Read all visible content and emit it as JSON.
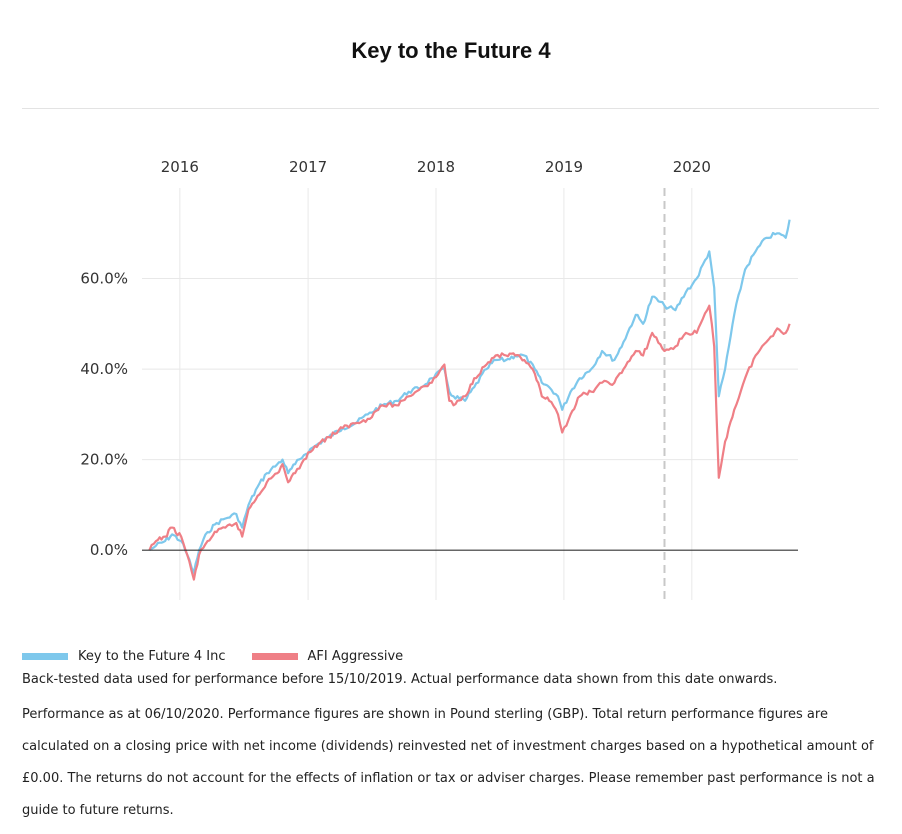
{
  "title": "Key to the Future 4",
  "legend": {
    "series1": "Key to the Future 4 Inc",
    "series2": "AFI Aggressive"
  },
  "notes": {
    "backtest": "Back-tested data used for performance before 15/10/2019. Actual performance data shown from this date onwards.",
    "disclaimer": "Performance as at 06/10/2020. Performance figures are shown in Pound sterling (GBP). Total return performance figures are calculated on a closing price with net income (dividends) reinvested net of investment charges based on a hypothetical amount of £0.00. The returns do not account for the effects of inflation or tax or adviser charges. Please remember past performance is not a guide to future returns."
  },
  "colors": {
    "series1": "#7ec8ec",
    "series2": "#ef7f86",
    "grid": "#e8e8e8",
    "zero_line": "#333333",
    "marker_line": "#c8c8c8"
  },
  "chart_data": {
    "type": "line",
    "x_axis": {
      "ticks": [
        {
          "date": "2016-01-01",
          "label": "2016"
        },
        {
          "date": "2017-01-01",
          "label": "2017"
        },
        {
          "date": "2018-01-01",
          "label": "2018"
        },
        {
          "date": "2019-01-01",
          "label": "2019"
        },
        {
          "date": "2020-01-01",
          "label": "2020"
        }
      ],
      "range": [
        "2015-09-15",
        "2020-10-30"
      ],
      "position": "top"
    },
    "y_axis": {
      "ticks": [
        {
          "value": 0,
          "label": "0.0%"
        },
        {
          "value": 20,
          "label": "20.0%"
        },
        {
          "value": 40,
          "label": "40.0%"
        },
        {
          "value": 60,
          "label": "60.0%"
        }
      ],
      "range": [
        -11,
        80
      ],
      "unit": "%"
    },
    "marker_date": "2019-10-15",
    "grid": true,
    "legend_position": "bottom-left",
    "series": [
      {
        "name": "Key to the Future 4 Inc",
        "points": [
          [
            "2015-10-06",
            0
          ],
          [
            "2015-10-25",
            1
          ],
          [
            "2015-11-20",
            2
          ],
          [
            "2015-12-10",
            3.5
          ],
          [
            "2016-01-05",
            2
          ],
          [
            "2016-01-22",
            -1
          ],
          [
            "2016-02-10",
            -5
          ],
          [
            "2016-02-25",
            0
          ],
          [
            "2016-03-20",
            4
          ],
          [
            "2016-04-15",
            6
          ],
          [
            "2016-05-10",
            7
          ],
          [
            "2016-06-10",
            8
          ],
          [
            "2016-06-27",
            5
          ],
          [
            "2016-07-15",
            10
          ],
          [
            "2016-08-10",
            14
          ],
          [
            "2016-09-05",
            17
          ],
          [
            "2016-10-05",
            19
          ],
          [
            "2016-10-20",
            20
          ],
          [
            "2016-11-05",
            17
          ],
          [
            "2016-11-25",
            19
          ],
          [
            "2016-12-20",
            21
          ],
          [
            "2017-01-20",
            23
          ],
          [
            "2017-03-01",
            25
          ],
          [
            "2017-04-10",
            27
          ],
          [
            "2017-05-15",
            28
          ],
          [
            "2017-06-20",
            30
          ],
          [
            "2017-08-01",
            32
          ],
          [
            "2017-09-10",
            33
          ],
          [
            "2017-10-15",
            35
          ],
          [
            "2017-11-20",
            36
          ],
          [
            "2017-12-20",
            38
          ],
          [
            "2018-01-25",
            40
          ],
          [
            "2018-02-08",
            35
          ],
          [
            "2018-02-20",
            34
          ],
          [
            "2018-03-25",
            33
          ],
          [
            "2018-04-20",
            36
          ],
          [
            "2018-05-25",
            40
          ],
          [
            "2018-06-20",
            42
          ],
          [
            "2018-07-20",
            42
          ],
          [
            "2018-08-15",
            43
          ],
          [
            "2018-09-10",
            43
          ],
          [
            "2018-10-10",
            40
          ],
          [
            "2018-10-30",
            37
          ],
          [
            "2018-11-20",
            36
          ],
          [
            "2018-12-15",
            34
          ],
          [
            "2018-12-27",
            31
          ],
          [
            "2019-01-20",
            35
          ],
          [
            "2019-02-15",
            38
          ],
          [
            "2019-03-20",
            40
          ],
          [
            "2019-04-20",
            44
          ],
          [
            "2019-05-25",
            42
          ],
          [
            "2019-06-20",
            46
          ],
          [
            "2019-07-25",
            52
          ],
          [
            "2019-08-15",
            50
          ],
          [
            "2019-09-10",
            56
          ],
          [
            "2019-10-15",
            54
          ],
          [
            "2019-11-15",
            53
          ],
          [
            "2019-12-15",
            57
          ],
          [
            "2020-01-15",
            60
          ],
          [
            "2020-02-20",
            66
          ],
          [
            "2020-03-05",
            58
          ],
          [
            "2020-03-18",
            34
          ],
          [
            "2020-04-05",
            40
          ],
          [
            "2020-05-01",
            52
          ],
          [
            "2020-06-01",
            62
          ],
          [
            "2020-07-01",
            66
          ],
          [
            "2020-08-01",
            69
          ],
          [
            "2020-09-01",
            70
          ],
          [
            "2020-09-25",
            69
          ],
          [
            "2020-10-06",
            73
          ]
        ]
      },
      {
        "name": "AFI Aggressive",
        "points": [
          [
            "2015-10-06",
            0
          ],
          [
            "2015-10-25",
            2
          ],
          [
            "2015-11-20",
            3
          ],
          [
            "2015-12-10",
            5
          ],
          [
            "2016-01-05",
            3
          ],
          [
            "2016-01-22",
            -1
          ],
          [
            "2016-02-10",
            -6.5
          ],
          [
            "2016-02-25",
            -1
          ],
          [
            "2016-03-20",
            2
          ],
          [
            "2016-04-15",
            4
          ],
          [
            "2016-05-10",
            5
          ],
          [
            "2016-06-10",
            6
          ],
          [
            "2016-06-27",
            3
          ],
          [
            "2016-07-15",
            9
          ],
          [
            "2016-08-10",
            12
          ],
          [
            "2016-09-05",
            15
          ],
          [
            "2016-10-05",
            17
          ],
          [
            "2016-10-20",
            19
          ],
          [
            "2016-11-05",
            15
          ],
          [
            "2016-11-25",
            17
          ],
          [
            "2016-12-20",
            20
          ],
          [
            "2017-01-20",
            23
          ],
          [
            "2017-03-01",
            25
          ],
          [
            "2017-04-10",
            27
          ],
          [
            "2017-05-15",
            28
          ],
          [
            "2017-06-20",
            29
          ],
          [
            "2017-08-01",
            32
          ],
          [
            "2017-09-10",
            32
          ],
          [
            "2017-10-15",
            34
          ],
          [
            "2017-11-20",
            36
          ],
          [
            "2017-12-20",
            37
          ],
          [
            "2018-01-25",
            41
          ],
          [
            "2018-02-08",
            33
          ],
          [
            "2018-02-20",
            32
          ],
          [
            "2018-03-25",
            34
          ],
          [
            "2018-04-20",
            38
          ],
          [
            "2018-05-25",
            41
          ],
          [
            "2018-06-20",
            43
          ],
          [
            "2018-07-20",
            43
          ],
          [
            "2018-08-15",
            43
          ],
          [
            "2018-09-10",
            42
          ],
          [
            "2018-10-10",
            39
          ],
          [
            "2018-10-30",
            34
          ],
          [
            "2018-11-20",
            33
          ],
          [
            "2018-12-15",
            30
          ],
          [
            "2018-12-27",
            26
          ],
          [
            "2019-01-20",
            30
          ],
          [
            "2019-02-15",
            34
          ],
          [
            "2019-03-20",
            35
          ],
          [
            "2019-04-20",
            37
          ],
          [
            "2019-05-25",
            37
          ],
          [
            "2019-06-20",
            40
          ],
          [
            "2019-07-25",
            44
          ],
          [
            "2019-08-15",
            43
          ],
          [
            "2019-09-10",
            48
          ],
          [
            "2019-10-15",
            44
          ],
          [
            "2019-11-15",
            45
          ],
          [
            "2019-12-15",
            48
          ],
          [
            "2020-01-15",
            48
          ],
          [
            "2020-02-20",
            54
          ],
          [
            "2020-03-05",
            45
          ],
          [
            "2020-03-18",
            16
          ],
          [
            "2020-04-05",
            24
          ],
          [
            "2020-05-01",
            31
          ],
          [
            "2020-06-01",
            38
          ],
          [
            "2020-07-01",
            43
          ],
          [
            "2020-08-01",
            46
          ],
          [
            "2020-09-01",
            49
          ],
          [
            "2020-09-25",
            48
          ],
          [
            "2020-10-06",
            50
          ]
        ]
      }
    ]
  }
}
